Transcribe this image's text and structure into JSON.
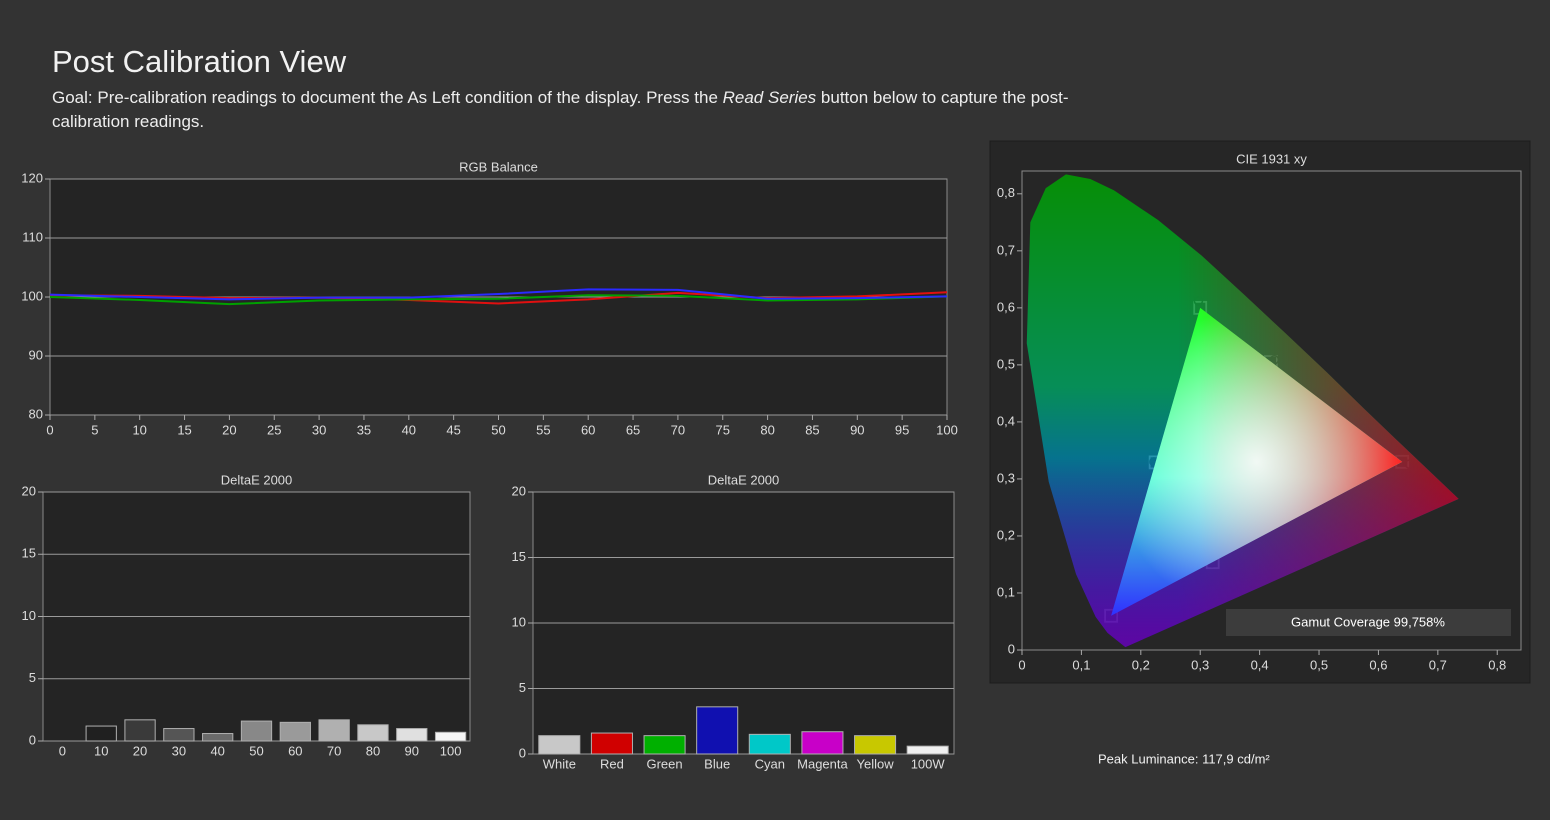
{
  "header": {
    "title": "Post Calibration View",
    "goal": [
      "Goal: Pre-calibration readings to document the As Left condition of the display. Press the ",
      "Read Series",
      " button below to capture the post-calibration readings."
    ]
  },
  "chart_data": [
    {
      "type": "line",
      "title": "RGB Balance",
      "x": [
        0,
        10,
        20,
        30,
        40,
        50,
        60,
        70,
        80,
        90,
        100
      ],
      "xlim": [
        0,
        100
      ],
      "xticks": [
        0,
        5,
        10,
        15,
        20,
        25,
        30,
        35,
        40,
        45,
        50,
        55,
        60,
        65,
        70,
        75,
        80,
        85,
        90,
        95,
        100
      ],
      "ylim": [
        80,
        120
      ],
      "yticks": [
        80,
        90,
        100,
        110,
        120
      ],
      "grid": true,
      "series": [
        {
          "color": "#e01010",
          "values": [
            100.3,
            100.2,
            99.8,
            99.9,
            99.5,
            98.9,
            99.6,
            100.7,
            99.8,
            100.1,
            100.8
          ]
        },
        {
          "color": "#00a000",
          "values": [
            100.0,
            99.5,
            98.8,
            99.4,
            99.6,
            99.7,
            100.3,
            100.2,
            99.4,
            99.6,
            100.1
          ]
        },
        {
          "color": "#2a2aff",
          "values": [
            100.4,
            100.0,
            99.6,
            99.9,
            99.9,
            100.5,
            101.3,
            101.2,
            99.7,
            99.8,
            100.1
          ]
        }
      ]
    },
    {
      "type": "bar",
      "title": "DeltaE 2000",
      "categories": [
        "0",
        "10",
        "20",
        "30",
        "40",
        "50",
        "60",
        "70",
        "80",
        "90",
        "100"
      ],
      "values": [
        0,
        1.2,
        1.7,
        1.0,
        0.6,
        1.6,
        1.5,
        1.7,
        1.3,
        1.0,
        0.7
      ],
      "colors": [
        "#1a1a1a",
        "#202020",
        "#3a3a3a",
        "#555555",
        "#6a6a6a",
        "#888888",
        "#9a9a9a",
        "#b0b0b0",
        "#c8c8c8",
        "#e0e0e0",
        "#f5f5f5"
      ],
      "ylim": [
        0,
        20
      ],
      "yticks": [
        0,
        5,
        10,
        15,
        20
      ],
      "grid": true
    },
    {
      "type": "bar",
      "title": "DeltaE 2000",
      "categories": [
        "White",
        "Red",
        "Green",
        "Blue",
        "Cyan",
        "Magenta",
        "Yellow",
        "100W"
      ],
      "values": [
        1.4,
        1.6,
        1.4,
        3.6,
        1.5,
        1.7,
        1.4,
        0.6
      ],
      "colors": [
        "#c8c8c8",
        "#d00000",
        "#00b000",
        "#1010b0",
        "#00c8c8",
        "#c800c8",
        "#c8c800",
        "#f0f0f0"
      ],
      "ylim": [
        0,
        20
      ],
      "yticks": [
        0,
        5,
        10,
        15,
        20
      ],
      "grid": true
    },
    {
      "type": "scatter",
      "title": "CIE 1931 xy",
      "xlim": [
        0,
        0.84
      ],
      "ylim": [
        0,
        0.84
      ],
      "grid": false,
      "xticks": [
        0,
        {
          "value": 0.1,
          "label": "0,1"
        },
        {
          "value": 0.2,
          "label": "0,2"
        },
        {
          "value": 0.3,
          "label": "0,3"
        },
        {
          "value": 0.4,
          "label": "0,4"
        },
        {
          "value": 0.5,
          "label": "0,5"
        },
        {
          "value": 0.6,
          "label": "0,6"
        },
        {
          "value": 0.7,
          "label": "0,7"
        },
        {
          "value": 0.8,
          "label": "0,8"
        }
      ],
      "yticks": [
        0,
        {
          "value": 0.1,
          "label": "0,1"
        },
        {
          "value": 0.2,
          "label": "0,2"
        },
        {
          "value": 0.3,
          "label": "0,3"
        },
        {
          "value": 0.4,
          "label": "0,4"
        },
        {
          "value": 0.5,
          "label": "0,5"
        },
        {
          "value": 0.6,
          "label": "0,6"
        },
        {
          "value": 0.7,
          "label": "0,7"
        },
        {
          "value": 0.8,
          "label": "0,8"
        }
      ],
      "series": [
        {
          "marker": "square",
          "color": "#ffffff",
          "x": [
            0.64,
            0.3,
            0.15,
            0.3127,
            0.225,
            0.321,
            0.419
          ],
          "y": [
            0.33,
            0.6,
            0.06,
            0.329,
            0.329,
            0.154,
            0.505
          ]
        },
        {
          "marker": "circle",
          "color": "#222222",
          "x": [
            0.652,
            0.297,
            0.151,
            0.313,
            0.222,
            0.32,
            0.425
          ],
          "y": [
            0.326,
            0.612,
            0.061,
            0.33,
            0.33,
            0.153,
            0.509
          ]
        }
      ],
      "annotation": "Gamut Coverage 99,758%"
    }
  ],
  "footer": {
    "peak_luminance": "Peak Luminance: 117,9 cd/m²"
  }
}
